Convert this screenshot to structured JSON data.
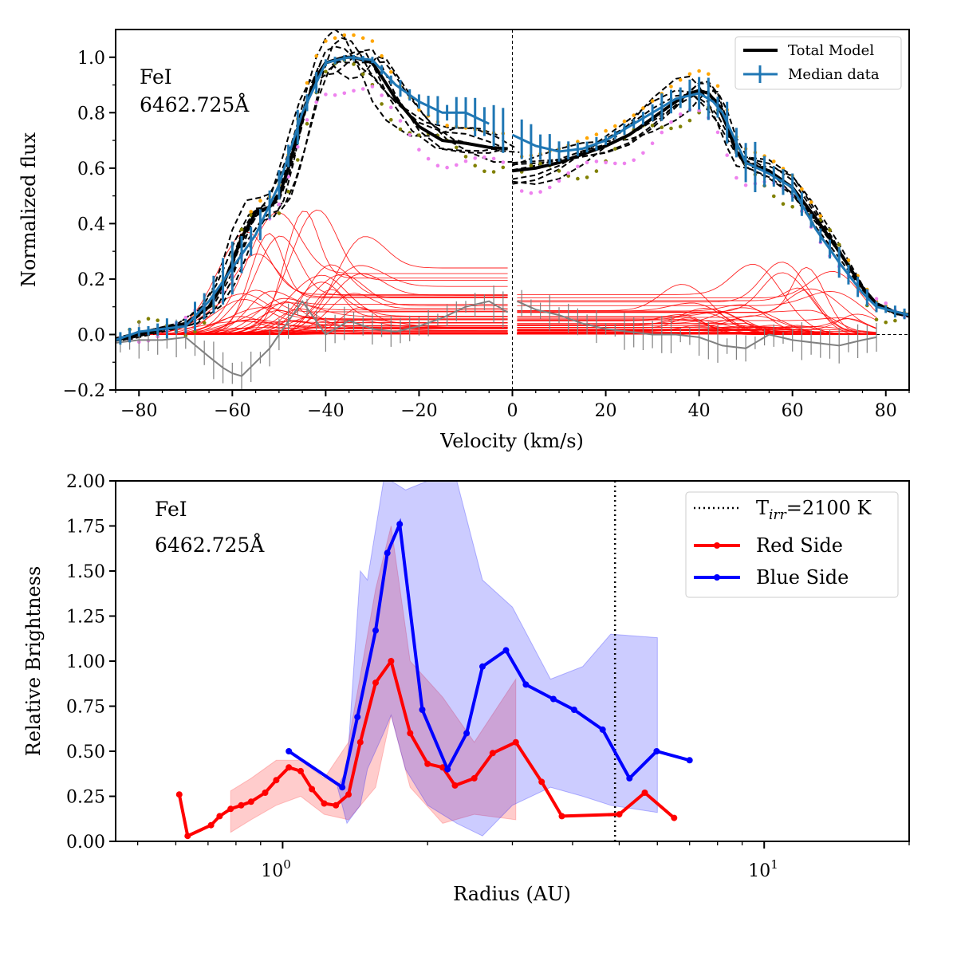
{
  "chart_data": [
    {
      "type": "line",
      "panel": "top",
      "xlabel": "Velocity (km/s)",
      "ylabel": "Normalized flux",
      "xlim": [
        -85,
        85
      ],
      "ylim": [
        -0.2,
        1.1
      ],
      "xticks": [
        -80,
        -60,
        -40,
        -20,
        0,
        20,
        40,
        60,
        80
      ],
      "yticks": [
        -0.2,
        0.0,
        0.2,
        0.4,
        0.6,
        0.8,
        1.0
      ],
      "xtick_labels": [
        "−80",
        "−60",
        "−40",
        "−20",
        "0",
        "20",
        "40",
        "60",
        "80"
      ],
      "ytick_labels": [
        "−0.2",
        "0.0",
        "0.2",
        "0.4",
        "0.6",
        "0.8",
        "1.0"
      ],
      "annotation": {
        "line": "FeI",
        "wavelength": "6462.725Å"
      },
      "legend": {
        "position": "top-right",
        "entries": [
          "Total Model",
          "Median data"
        ]
      },
      "total_model": {
        "blue_x": [
          -85,
          -80,
          -75,
          -70,
          -65,
          -62,
          -60,
          -58,
          -55,
          -52,
          -50,
          -48,
          -46,
          -44,
          -42,
          -40,
          -38,
          -36,
          -34,
          -32,
          -30,
          -28,
          -25,
          -20,
          -15,
          -10,
          -5,
          -1
        ],
        "blue_y": [
          -0.02,
          0.0,
          0.02,
          0.04,
          0.1,
          0.18,
          0.26,
          0.35,
          0.44,
          0.46,
          0.5,
          0.6,
          0.72,
          0.84,
          0.93,
          0.98,
          0.99,
          1.0,
          1.0,
          0.99,
          0.98,
          0.93,
          0.85,
          0.75,
          0.7,
          0.69,
          0.675,
          0.67
        ],
        "red_x": [
          0,
          5,
          10,
          15,
          20,
          25,
          30,
          35,
          38,
          40,
          42,
          44,
          46,
          48,
          50,
          55,
          60,
          65,
          70,
          75,
          78,
          82,
          85
        ],
        "red_y": [
          0.59,
          0.6,
          0.62,
          0.65,
          0.68,
          0.72,
          0.78,
          0.84,
          0.87,
          0.88,
          0.87,
          0.83,
          0.75,
          0.66,
          0.62,
          0.59,
          0.53,
          0.42,
          0.3,
          0.17,
          0.11,
          0.08,
          0.07
        ]
      },
      "median_data": {
        "x": [
          -85,
          -80,
          -75,
          -70,
          -65,
          -60,
          -55,
          -50,
          -45,
          -40,
          -35,
          -30,
          -25,
          -20,
          -15,
          -10,
          -5,
          0,
          5,
          10,
          15,
          20,
          25,
          30,
          35,
          40,
          43,
          45,
          50,
          55,
          60,
          65,
          70,
          75,
          78,
          85
        ],
        "y": [
          -0.02,
          0.01,
          0.02,
          0.03,
          0.12,
          0.24,
          0.36,
          0.54,
          0.8,
          0.98,
          1.0,
          0.99,
          0.9,
          0.84,
          0.8,
          0.8,
          0.76,
          0.72,
          0.68,
          0.66,
          0.67,
          0.7,
          0.75,
          0.8,
          0.85,
          0.87,
          0.84,
          0.8,
          0.62,
          0.58,
          0.53,
          0.38,
          0.26,
          0.15,
          0.1,
          0.07
        ],
        "err": [
          0.02,
          0.02,
          0.03,
          0.03,
          0.06,
          0.07,
          0.06,
          0.05,
          0.05,
          0.02,
          0.01,
          0.01,
          0.02,
          0.04,
          0.04,
          0.05,
          0.06,
          0.07,
          0.06,
          0.03,
          0.02,
          0.02,
          0.02,
          0.03,
          0.05,
          0.05,
          0.06,
          0.06,
          0.08,
          0.06,
          0.04,
          0.04,
          0.04,
          0.03,
          0.02,
          0.02
        ]
      },
      "residual": {
        "x": [
          -85,
          -80,
          -75,
          -70,
          -65,
          -62,
          -60,
          -58,
          -55,
          -52,
          -50,
          -45,
          -40,
          -35,
          -30,
          -25,
          -20,
          -15,
          -10,
          -5,
          -1,
          1,
          5,
          10,
          15,
          20,
          25,
          30,
          35,
          40,
          45,
          50,
          55,
          60,
          65,
          70,
          75,
          78
        ],
        "y": [
          -0.03,
          -0.02,
          -0.02,
          -0.01,
          -0.08,
          -0.12,
          -0.14,
          -0.15,
          -0.1,
          -0.05,
          0.0,
          0.12,
          0.0,
          0.05,
          0.02,
          0.01,
          0.03,
          0.06,
          0.1,
          0.12,
          0.08,
          0.12,
          0.09,
          0.07,
          0.04,
          0.02,
          0.01,
          0.0,
          0.0,
          -0.01,
          -0.04,
          -0.05,
          0.0,
          -0.02,
          -0.03,
          -0.04,
          -0.02,
          -0.01
        ]
      }
    },
    {
      "type": "line",
      "panel": "bottom",
      "xlabel": "Radius (AU)",
      "ylabel": "Relative Brightness",
      "xscale": "log",
      "xlim": [
        0.45,
        20
      ],
      "ylim": [
        0.0,
        2.0
      ],
      "yticks": [
        0.0,
        0.25,
        0.5,
        0.75,
        1.0,
        1.25,
        1.5,
        1.75,
        2.0
      ],
      "ytick_labels": [
        "0.00",
        "0.25",
        "0.50",
        "0.75",
        "1.00",
        "1.25",
        "1.50",
        "1.75",
        "2.00"
      ],
      "xticks_major": [
        1,
        10
      ],
      "xtick_labels": [
        {
          "base": "10",
          "exp": "0"
        },
        {
          "base": "10",
          "exp": "1"
        }
      ],
      "annotation": {
        "line": "FeI",
        "wavelength": "6462.725Å"
      },
      "legend": {
        "position": "top-right",
        "entries": [
          "T",
          "irr",
          "=2100 K",
          "Red Side",
          "Blue Side"
        ]
      },
      "tirr_radius": 4.9,
      "series": [
        {
          "name": "Red Side",
          "color": "#ff0000",
          "x": [
            0.61,
            0.635,
            0.71,
            0.74,
            0.78,
            0.82,
            0.86,
            0.92,
            0.97,
            1.03,
            1.09,
            1.15,
            1.22,
            1.29,
            1.37,
            1.45,
            1.56,
            1.68,
            1.84,
            2.0,
            2.15,
            2.28,
            2.5,
            2.73,
            3.05,
            3.45,
            3.8,
            5.0,
            5.65,
            6.5
          ],
          "values": [
            0.26,
            0.03,
            0.09,
            0.14,
            0.18,
            0.2,
            0.22,
            0.27,
            0.34,
            0.41,
            0.39,
            0.29,
            0.21,
            0.2,
            0.26,
            0.55,
            0.88,
            1.0,
            0.6,
            0.43,
            0.41,
            0.31,
            0.35,
            0.49,
            0.55,
            0.33,
            0.14,
            0.15,
            0.27,
            0.13
          ],
          "band_x": [
            0.78,
            0.86,
            0.97,
            1.09,
            1.22,
            1.37,
            1.56,
            1.68,
            1.84,
            2.15,
            2.5,
            3.05
          ],
          "band_lo": [
            0.05,
            0.12,
            0.2,
            0.25,
            0.15,
            0.12,
            0.3,
            0.7,
            0.3,
            0.1,
            0.15,
            0.12
          ],
          "band_hi": [
            0.28,
            0.35,
            0.45,
            0.45,
            0.35,
            0.55,
            1.4,
            1.75,
            1.0,
            0.8,
            0.55,
            0.9
          ]
        },
        {
          "name": "Blue Side",
          "color": "#0000ff",
          "x": [
            1.03,
            1.33,
            1.43,
            1.56,
            1.65,
            1.75,
            1.95,
            2.2,
            2.41,
            2.6,
            2.91,
            3.2,
            3.65,
            4.03,
            4.62,
            5.25,
            5.98,
            7.0
          ],
          "values": [
            0.5,
            0.3,
            0.69,
            1.17,
            1.6,
            1.76,
            0.73,
            0.4,
            0.6,
            0.97,
            1.06,
            0.87,
            0.79,
            0.73,
            0.62,
            0.35,
            0.5,
            0.45
          ],
          "band_x": [
            1.3,
            1.36,
            1.45,
            1.5,
            1.62,
            1.68,
            1.8,
            2.0,
            2.3,
            2.6,
            3.0,
            3.6,
            4.2,
            4.8,
            6.0
          ],
          "band_lo": [
            0.3,
            0.4,
            1.5,
            1.45,
            2.0,
            2.0,
            1.95,
            2.0,
            2.0,
            1.45,
            1.3,
            0.9,
            0.97,
            1.15,
            1.13
          ],
          "band_hi_note": "upper and lower edges of shaded band listed separately",
          "band_lower": [
            0.3,
            0.1,
            0.2,
            0.4,
            0.6,
            0.7,
            0.4,
            0.2,
            0.1,
            0.03,
            0.2,
            0.3,
            0.25,
            0.2,
            0.16
          ]
        }
      ]
    }
  ]
}
